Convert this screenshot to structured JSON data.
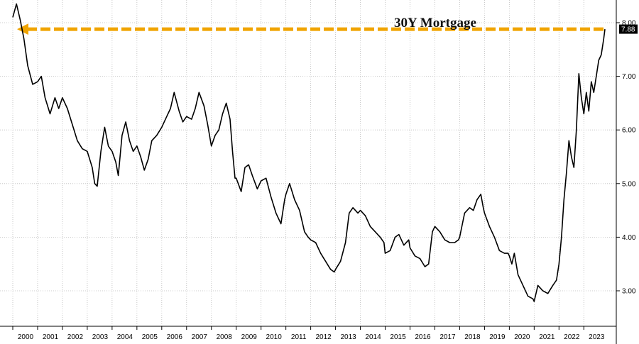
{
  "chart_data": {
    "type": "line",
    "title": "30Y Mortgage",
    "xlabel": "",
    "ylabel": "",
    "x_ticks": [
      "2000",
      "2001",
      "2002",
      "2003",
      "2004",
      "2005",
      "2006",
      "2007",
      "2008",
      "2009",
      "2010",
      "2011",
      "2012",
      "2013",
      "2014",
      "2015",
      "2016",
      "2017",
      "2018",
      "2019",
      "2020",
      "2021",
      "2022",
      "2023"
    ],
    "y_ticks": [
      "3.00",
      "4.00",
      "5.00",
      "6.00",
      "7.00",
      "8.00"
    ],
    "xlim": [
      2000.0,
      2023.85
    ],
    "ylim": [
      2.5,
      8.5
    ],
    "grid": true,
    "last_value_label": "7.88",
    "reference_line": {
      "value": 7.88,
      "color": "#f0a400",
      "style": "dashed-arrow"
    },
    "colors": {
      "line": "#000000",
      "reference": "#f0a400",
      "last_box": "#000000"
    },
    "series": [
      {
        "values": [
          [
            2000.0,
            8.1
          ],
          [
            2000.15,
            8.35
          ],
          [
            2000.3,
            8.05
          ],
          [
            2000.45,
            7.7
          ],
          [
            2000.6,
            7.2
          ],
          [
            2000.8,
            6.85
          ],
          [
            2001.0,
            6.9
          ],
          [
            2001.15,
            7.0
          ],
          [
            2001.3,
            6.6
          ],
          [
            2001.5,
            6.3
          ],
          [
            2001.7,
            6.6
          ],
          [
            2001.85,
            6.4
          ],
          [
            2002.0,
            6.6
          ],
          [
            2002.2,
            6.4
          ],
          [
            2002.4,
            6.1
          ],
          [
            2002.6,
            5.8
          ],
          [
            2002.8,
            5.65
          ],
          [
            2003.0,
            5.6
          ],
          [
            2003.2,
            5.3
          ],
          [
            2003.3,
            5.0
          ],
          [
            2003.4,
            4.95
          ],
          [
            2003.55,
            5.6
          ],
          [
            2003.7,
            6.05
          ],
          [
            2003.85,
            5.7
          ],
          [
            2004.0,
            5.6
          ],
          [
            2004.15,
            5.4
          ],
          [
            2004.25,
            5.15
          ],
          [
            2004.4,
            5.9
          ],
          [
            2004.55,
            6.15
          ],
          [
            2004.7,
            5.8
          ],
          [
            2004.85,
            5.6
          ],
          [
            2005.0,
            5.7
          ],
          [
            2005.15,
            5.5
          ],
          [
            2005.3,
            5.25
          ],
          [
            2005.45,
            5.45
          ],
          [
            2005.6,
            5.8
          ],
          [
            2005.8,
            5.9
          ],
          [
            2006.0,
            6.05
          ],
          [
            2006.2,
            6.25
          ],
          [
            2006.35,
            6.4
          ],
          [
            2006.5,
            6.7
          ],
          [
            2006.7,
            6.35
          ],
          [
            2006.85,
            6.15
          ],
          [
            2007.0,
            6.25
          ],
          [
            2007.2,
            6.2
          ],
          [
            2007.35,
            6.4
          ],
          [
            2007.5,
            6.7
          ],
          [
            2007.7,
            6.45
          ],
          [
            2007.85,
            6.1
          ],
          [
            2008.0,
            5.7
          ],
          [
            2008.15,
            5.9
          ],
          [
            2008.3,
            6.0
          ],
          [
            2008.45,
            6.3
          ],
          [
            2008.6,
            6.5
          ],
          [
            2008.75,
            6.2
          ],
          [
            2008.85,
            5.6
          ],
          [
            2008.95,
            5.1
          ],
          [
            2009.0,
            5.1
          ],
          [
            2009.2,
            4.85
          ],
          [
            2009.35,
            5.3
          ],
          [
            2009.5,
            5.35
          ],
          [
            2009.65,
            5.15
          ],
          [
            2009.85,
            4.9
          ],
          [
            2010.0,
            5.05
          ],
          [
            2010.2,
            5.1
          ],
          [
            2010.4,
            4.75
          ],
          [
            2010.6,
            4.45
          ],
          [
            2010.8,
            4.25
          ],
          [
            2010.95,
            4.7
          ],
          [
            2011.0,
            4.8
          ],
          [
            2011.15,
            5.0
          ],
          [
            2011.35,
            4.7
          ],
          [
            2011.55,
            4.5
          ],
          [
            2011.75,
            4.1
          ],
          [
            2011.9,
            4.0
          ],
          [
            2012.0,
            3.95
          ],
          [
            2012.2,
            3.9
          ],
          [
            2012.4,
            3.7
          ],
          [
            2012.6,
            3.55
          ],
          [
            2012.8,
            3.4
          ],
          [
            2012.95,
            3.35
          ],
          [
            2013.0,
            3.4
          ],
          [
            2013.2,
            3.55
          ],
          [
            2013.4,
            3.9
          ],
          [
            2013.55,
            4.45
          ],
          [
            2013.7,
            4.55
          ],
          [
            2013.9,
            4.45
          ],
          [
            2014.0,
            4.5
          ],
          [
            2014.2,
            4.4
          ],
          [
            2014.4,
            4.2
          ],
          [
            2014.6,
            4.1
          ],
          [
            2014.8,
            4.0
          ],
          [
            2014.95,
            3.9
          ],
          [
            2015.0,
            3.7
          ],
          [
            2015.2,
            3.75
          ],
          [
            2015.4,
            4.0
          ],
          [
            2015.55,
            4.05
          ],
          [
            2015.75,
            3.85
          ],
          [
            2015.95,
            3.95
          ],
          [
            2016.0,
            3.8
          ],
          [
            2016.2,
            3.65
          ],
          [
            2016.4,
            3.6
          ],
          [
            2016.6,
            3.45
          ],
          [
            2016.75,
            3.5
          ],
          [
            2016.9,
            4.1
          ],
          [
            2017.0,
            4.2
          ],
          [
            2017.2,
            4.1
          ],
          [
            2017.4,
            3.95
          ],
          [
            2017.6,
            3.9
          ],
          [
            2017.8,
            3.9
          ],
          [
            2017.95,
            3.95
          ],
          [
            2018.0,
            4.0
          ],
          [
            2018.2,
            4.45
          ],
          [
            2018.4,
            4.55
          ],
          [
            2018.55,
            4.5
          ],
          [
            2018.7,
            4.7
          ],
          [
            2018.85,
            4.8
          ],
          [
            2018.95,
            4.55
          ],
          [
            2019.0,
            4.45
          ],
          [
            2019.2,
            4.2
          ],
          [
            2019.4,
            4.0
          ],
          [
            2019.6,
            3.75
          ],
          [
            2019.8,
            3.7
          ],
          [
            2019.95,
            3.7
          ],
          [
            2020.0,
            3.65
          ],
          [
            2020.1,
            3.5
          ],
          [
            2020.2,
            3.7
          ],
          [
            2020.35,
            3.3
          ],
          [
            2020.55,
            3.1
          ],
          [
            2020.75,
            2.9
          ],
          [
            2020.95,
            2.85
          ],
          [
            2021.0,
            2.8
          ],
          [
            2021.15,
            3.1
          ],
          [
            2021.35,
            3.0
          ],
          [
            2021.55,
            2.95
          ],
          [
            2021.75,
            3.1
          ],
          [
            2021.9,
            3.2
          ],
          [
            2022.0,
            3.5
          ],
          [
            2022.1,
            4.0
          ],
          [
            2022.2,
            4.7
          ],
          [
            2022.3,
            5.2
          ],
          [
            2022.4,
            5.8
          ],
          [
            2022.5,
            5.5
          ],
          [
            2022.6,
            5.3
          ],
          [
            2022.7,
            6.0
          ],
          [
            2022.8,
            7.05
          ],
          [
            2022.9,
            6.6
          ],
          [
            2023.0,
            6.3
          ],
          [
            2023.1,
            6.7
          ],
          [
            2023.2,
            6.35
          ],
          [
            2023.3,
            6.9
          ],
          [
            2023.4,
            6.7
          ],
          [
            2023.5,
            7.0
          ],
          [
            2023.6,
            7.3
          ],
          [
            2023.7,
            7.4
          ],
          [
            2023.8,
            7.7
          ],
          [
            2023.85,
            7.88
          ]
        ]
      }
    ]
  }
}
